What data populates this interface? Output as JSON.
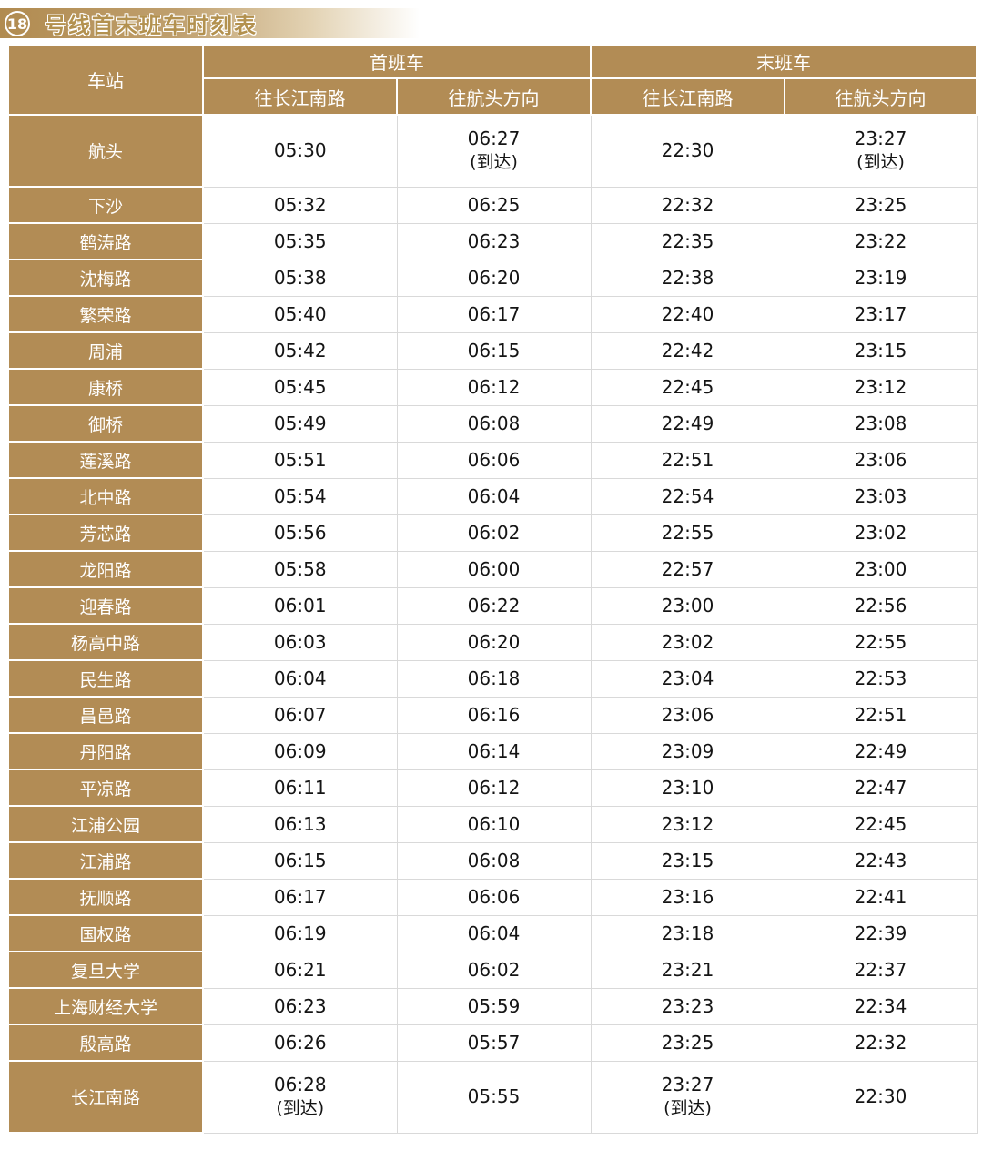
{
  "title": {
    "line_number": "18",
    "text": "号线首末班车时刻表"
  },
  "colors": {
    "accent_tan": "#b28c55",
    "header_text": "#ffffff",
    "time_text": "#141414",
    "grid_line": "#d9d9d9",
    "band_gradient_start": "#b18b50"
  },
  "table": {
    "headers": {
      "station": "车站",
      "first_train": "首班车",
      "last_train": "末班车",
      "directions": [
        "往长江南路",
        "往航头方向",
        "往长江南路",
        "往航头方向"
      ]
    },
    "rows": [
      {
        "station": "航头",
        "times": [
          {
            "t": "05:30"
          },
          {
            "t": "06:27",
            "note": "(到达)"
          },
          {
            "t": "22:30"
          },
          {
            "t": "23:27",
            "note": "(到达)"
          }
        ]
      },
      {
        "station": "下沙",
        "times": [
          {
            "t": "05:32"
          },
          {
            "t": "06:25"
          },
          {
            "t": "22:32"
          },
          {
            "t": "23:25"
          }
        ]
      },
      {
        "station": "鹤涛路",
        "times": [
          {
            "t": "05:35"
          },
          {
            "t": "06:23"
          },
          {
            "t": "22:35"
          },
          {
            "t": "23:22"
          }
        ]
      },
      {
        "station": "沈梅路",
        "times": [
          {
            "t": "05:38"
          },
          {
            "t": "06:20"
          },
          {
            "t": "22:38"
          },
          {
            "t": "23:19"
          }
        ]
      },
      {
        "station": "繁荣路",
        "times": [
          {
            "t": "05:40"
          },
          {
            "t": "06:17"
          },
          {
            "t": "22:40"
          },
          {
            "t": "23:17"
          }
        ]
      },
      {
        "station": "周浦",
        "times": [
          {
            "t": "05:42"
          },
          {
            "t": "06:15"
          },
          {
            "t": "22:42"
          },
          {
            "t": "23:15"
          }
        ]
      },
      {
        "station": "康桥",
        "times": [
          {
            "t": "05:45"
          },
          {
            "t": "06:12"
          },
          {
            "t": "22:45"
          },
          {
            "t": "23:12"
          }
        ]
      },
      {
        "station": "御桥",
        "times": [
          {
            "t": "05:49"
          },
          {
            "t": "06:08"
          },
          {
            "t": "22:49"
          },
          {
            "t": "23:08"
          }
        ]
      },
      {
        "station": "莲溪路",
        "times": [
          {
            "t": "05:51"
          },
          {
            "t": "06:06"
          },
          {
            "t": "22:51"
          },
          {
            "t": "23:06"
          }
        ]
      },
      {
        "station": "北中路",
        "times": [
          {
            "t": "05:54"
          },
          {
            "t": "06:04"
          },
          {
            "t": "22:54"
          },
          {
            "t": "23:03"
          }
        ]
      },
      {
        "station": "芳芯路",
        "times": [
          {
            "t": "05:56"
          },
          {
            "t": "06:02"
          },
          {
            "t": "22:55"
          },
          {
            "t": "23:02"
          }
        ]
      },
      {
        "station": "龙阳路",
        "times": [
          {
            "t": "05:58"
          },
          {
            "t": "06:00"
          },
          {
            "t": "22:57"
          },
          {
            "t": "23:00"
          }
        ]
      },
      {
        "station": "迎春路",
        "times": [
          {
            "t": "06:01"
          },
          {
            "t": "06:22"
          },
          {
            "t": "23:00"
          },
          {
            "t": "22:56"
          }
        ]
      },
      {
        "station": "杨高中路",
        "times": [
          {
            "t": "06:03"
          },
          {
            "t": "06:20"
          },
          {
            "t": "23:02"
          },
          {
            "t": "22:55"
          }
        ]
      },
      {
        "station": "民生路",
        "times": [
          {
            "t": "06:04"
          },
          {
            "t": "06:18"
          },
          {
            "t": "23:04"
          },
          {
            "t": "22:53"
          }
        ]
      },
      {
        "station": "昌邑路",
        "times": [
          {
            "t": "06:07"
          },
          {
            "t": "06:16"
          },
          {
            "t": "23:06"
          },
          {
            "t": "22:51"
          }
        ]
      },
      {
        "station": "丹阳路",
        "times": [
          {
            "t": "06:09"
          },
          {
            "t": "06:14"
          },
          {
            "t": "23:09"
          },
          {
            "t": "22:49"
          }
        ]
      },
      {
        "station": "平凉路",
        "times": [
          {
            "t": "06:11"
          },
          {
            "t": "06:12"
          },
          {
            "t": "23:10"
          },
          {
            "t": "22:47"
          }
        ]
      },
      {
        "station": "江浦公园",
        "times": [
          {
            "t": "06:13"
          },
          {
            "t": "06:10"
          },
          {
            "t": "23:12"
          },
          {
            "t": "22:45"
          }
        ]
      },
      {
        "station": "江浦路",
        "times": [
          {
            "t": "06:15"
          },
          {
            "t": "06:08"
          },
          {
            "t": "23:15"
          },
          {
            "t": "22:43"
          }
        ]
      },
      {
        "station": "抚顺路",
        "times": [
          {
            "t": "06:17"
          },
          {
            "t": "06:06"
          },
          {
            "t": "23:16"
          },
          {
            "t": "22:41"
          }
        ]
      },
      {
        "station": "国权路",
        "times": [
          {
            "t": "06:19"
          },
          {
            "t": "06:04"
          },
          {
            "t": "23:18"
          },
          {
            "t": "22:39"
          }
        ]
      },
      {
        "station": "复旦大学",
        "times": [
          {
            "t": "06:21"
          },
          {
            "t": "06:02"
          },
          {
            "t": "23:21"
          },
          {
            "t": "22:37"
          }
        ]
      },
      {
        "station": "上海财经大学",
        "times": [
          {
            "t": "06:23"
          },
          {
            "t": "05:59"
          },
          {
            "t": "23:23"
          },
          {
            "t": "22:34"
          }
        ]
      },
      {
        "station": "殷高路",
        "times": [
          {
            "t": "06:26"
          },
          {
            "t": "05:57"
          },
          {
            "t": "23:25"
          },
          {
            "t": "22:32"
          }
        ]
      },
      {
        "station": "长江南路",
        "times": [
          {
            "t": "06:28",
            "note": "(到达)"
          },
          {
            "t": "05:55"
          },
          {
            "t": "23:27",
            "note": "(到达)"
          },
          {
            "t": "22:30"
          }
        ]
      }
    ]
  }
}
